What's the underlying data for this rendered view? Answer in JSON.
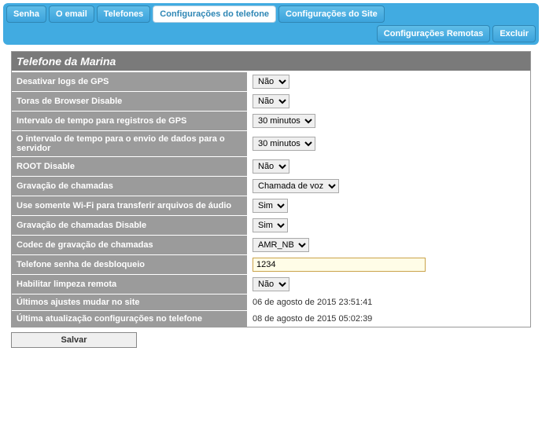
{
  "tabs": {
    "senha": "Senha",
    "email": "O email",
    "telefones": "Telefones",
    "config_telefone": "Configurações do telefone",
    "config_site": "Configurações do Site",
    "config_remotas": "Configurações Remotas",
    "excluir": "Excluir"
  },
  "panel": {
    "title": "Telefone da Marina"
  },
  "fields": {
    "gps_disable": {
      "label": "Desativar logs de GPS",
      "value": "Não"
    },
    "browser_disable": {
      "label": "Toras de Browser Disable",
      "value": "Não"
    },
    "gps_interval": {
      "label": "Intervalo de tempo para registros de GPS",
      "value": "30 minutos"
    },
    "send_interval": {
      "label": "O intervalo de tempo para o envio de dados para o servidor",
      "value": "30 minutos"
    },
    "root_disable": {
      "label": "ROOT Disable",
      "value": "Não"
    },
    "call_rec": {
      "label": "Gravação de chamadas",
      "value": "Chamada de voz"
    },
    "wifi_only": {
      "label": "Use somente Wi-Fi para transferir arquivos de áudio",
      "value": "Sim"
    },
    "call_rec_disable": {
      "label": "Gravação de chamadas Disable",
      "value": "Sim"
    },
    "codec": {
      "label": "Codec de gravação de chamadas",
      "value": "AMR_NB"
    },
    "unlock_pass": {
      "label": "Telefone senha de desbloqueio",
      "value": "1234"
    },
    "remote_wipe": {
      "label": "Habilitar limpeza remota",
      "value": "Não"
    },
    "last_site": {
      "label": "Últimos ajustes mudar no site",
      "value": "06 de agosto de 2015 23:51:41"
    },
    "last_phone": {
      "label": "Última atualização configurações no telefone",
      "value": "08 de agosto de 2015 05:02:39"
    }
  },
  "buttons": {
    "save": "Salvar"
  }
}
